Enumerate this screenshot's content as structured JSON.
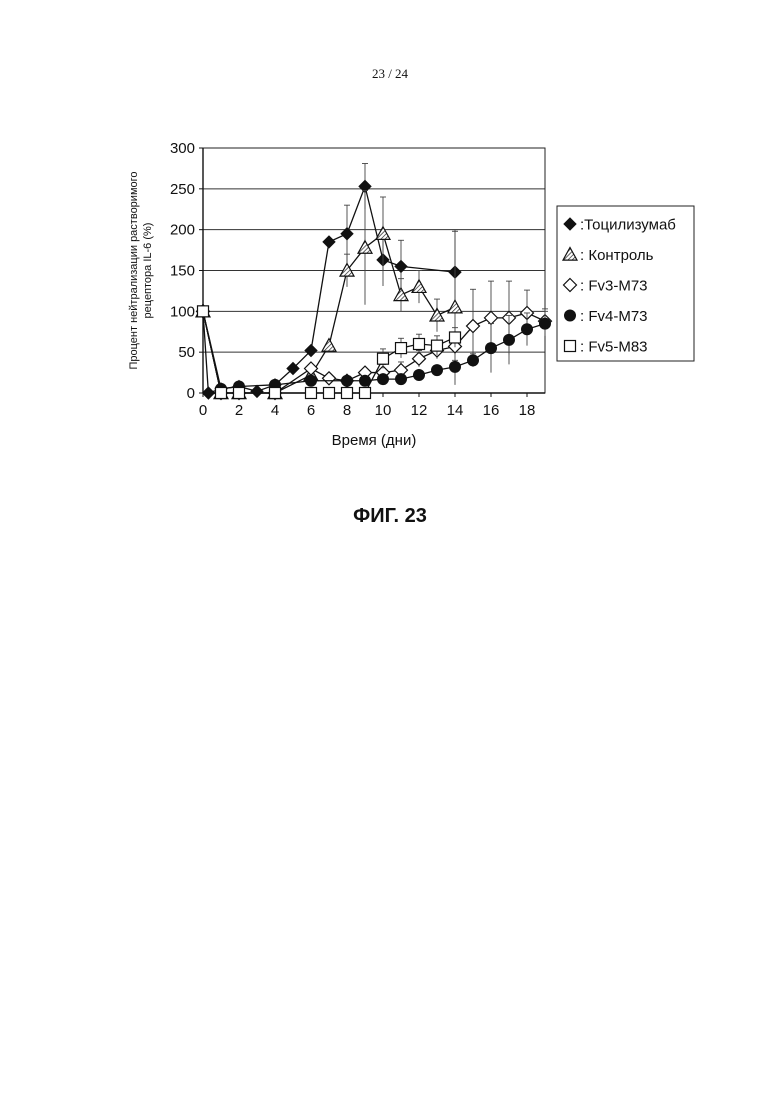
{
  "page": {
    "number": "23 / 24",
    "figure_caption": "ФИГ. 23"
  },
  "chart_data": {
    "type": "line",
    "xlabel": "Время (дни)",
    "ylabel": [
      "Процент нейтрализации растворимого",
      "рецептора IL-6 (%)"
    ],
    "xlim": [
      0,
      19
    ],
    "ylim": [
      0,
      300
    ],
    "xticks": [
      0,
      2,
      4,
      6,
      8,
      10,
      12,
      14,
      16,
      18
    ],
    "yticks": [
      0,
      50,
      100,
      150,
      200,
      250,
      300
    ],
    "grid": "horizontal",
    "legend_position": "right",
    "series": [
      {
        "name": ":Тоцилизумаб",
        "marker": "diamond-filled",
        "x": [
          0,
          0.3,
          1,
          2,
          3,
          4,
          5,
          6,
          7,
          8,
          9,
          10,
          11,
          14
        ],
        "y": [
          100,
          0,
          5,
          8,
          2,
          10,
          30,
          52,
          185,
          195,
          253,
          163,
          155,
          148
        ],
        "err": [
          0,
          0,
          0,
          0,
          0,
          0,
          0,
          0,
          0,
          35,
          28,
          32,
          32,
          50
        ]
      },
      {
        "name": ": Контроль",
        "marker": "triangle-hatched",
        "x": [
          0,
          1,
          2,
          4,
          6,
          7,
          8,
          9,
          10,
          11,
          12,
          13,
          14
        ],
        "y": [
          100,
          0,
          0,
          0,
          22,
          58,
          150,
          178,
          195,
          120,
          130,
          95,
          105
        ],
        "err": [
          0,
          0,
          0,
          0,
          0,
          0,
          20,
          70,
          45,
          20,
          20,
          20,
          95
        ]
      },
      {
        "name": ": Fv3-M73",
        "marker": "diamond-open",
        "x": [
          0,
          1,
          2,
          4,
          6,
          7,
          8,
          9,
          10,
          11,
          12,
          13,
          14,
          15,
          16,
          17,
          18,
          19
        ],
        "y": [
          100,
          0,
          0,
          0,
          30,
          18,
          15,
          25,
          25,
          28,
          42,
          52,
          57,
          82,
          92,
          92,
          98,
          88
        ],
        "err": [
          0,
          0,
          0,
          0,
          0,
          0,
          0,
          0,
          10,
          10,
          10,
          10,
          10,
          45,
          45,
          45,
          28,
          15
        ]
      },
      {
        "name": ": Fv4-M73",
        "marker": "circle-filled",
        "x": [
          0,
          1,
          2,
          4,
          6,
          8,
          9,
          10,
          11,
          12,
          13,
          14,
          15,
          16,
          17,
          18,
          19
        ],
        "y": [
          100,
          5,
          8,
          10,
          15,
          15,
          15,
          17,
          17,
          22,
          28,
          32,
          40,
          55,
          65,
          78,
          85
        ],
        "err": [
          0,
          0,
          0,
          0,
          0,
          0,
          0,
          0,
          0,
          0,
          0,
          8,
          8,
          30,
          30,
          20,
          15
        ]
      },
      {
        "name": ": Fv5-M83",
        "marker": "square-open",
        "x": [
          0,
          1,
          2,
          4,
          6,
          7,
          8,
          9,
          10,
          11,
          12,
          13,
          14
        ],
        "y": [
          100,
          0,
          0,
          0,
          0,
          0,
          0,
          0,
          42,
          55,
          60,
          58,
          68
        ],
        "err": [
          0,
          0,
          0,
          0,
          0,
          0,
          0,
          0,
          12,
          12,
          12,
          12,
          12
        ]
      }
    ]
  }
}
